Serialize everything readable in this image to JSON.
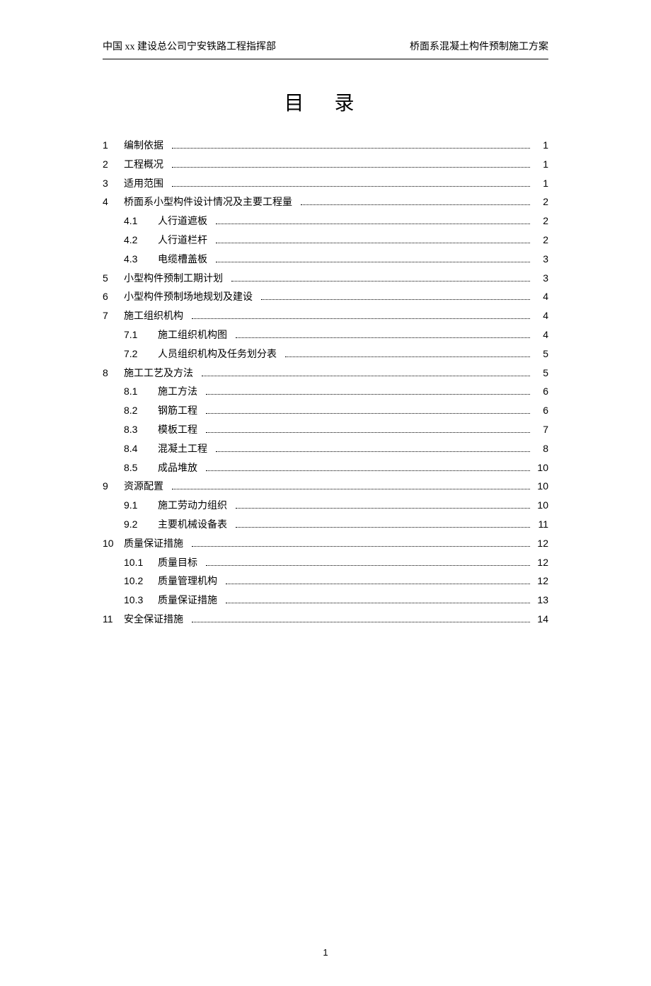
{
  "header": {
    "left": "中国 xx 建设总公司宁安铁路工程指挥部",
    "right": "桥面系混凝土构件预制施工方案"
  },
  "toc_title": "目 录",
  "page_number": "1",
  "entries": [
    {
      "level": 1,
      "num": "1",
      "label": "编制依据",
      "page": "1"
    },
    {
      "level": 1,
      "num": "2",
      "label": "工程概况",
      "page": "1"
    },
    {
      "level": 1,
      "num": "3",
      "label": "适用范围",
      "page": "1"
    },
    {
      "level": 1,
      "num": "4",
      "label": "桥面系小型构件设计情况及主要工程量",
      "page": "2"
    },
    {
      "level": 2,
      "num": "4.1",
      "label": "人行道遮板",
      "page": "2"
    },
    {
      "level": 2,
      "num": "4.2",
      "label": "人行道栏杆",
      "page": "2"
    },
    {
      "level": 2,
      "num": "4.3",
      "label": "电缆槽盖板",
      "page": "3"
    },
    {
      "level": 1,
      "num": "5",
      "label": "小型构件预制工期计划",
      "page": "3"
    },
    {
      "level": 1,
      "num": "6",
      "label": "小型构件预制场地规划及建设",
      "page": "4"
    },
    {
      "level": 1,
      "num": "7",
      "label": "施工组织机构",
      "page": "4"
    },
    {
      "level": 2,
      "num": "7.1",
      "label": "施工组织机构图",
      "page": "4"
    },
    {
      "level": 2,
      "num": "7.2",
      "label": "人员组织机构及任务划分表",
      "page": "5"
    },
    {
      "level": 1,
      "num": "8",
      "label": "施工工艺及方法",
      "page": "5"
    },
    {
      "level": 2,
      "num": "8.1",
      "label": "施工方法",
      "page": "6"
    },
    {
      "level": 2,
      "num": "8.2",
      "label": "钢筋工程",
      "page": "6"
    },
    {
      "level": 2,
      "num": "8.3",
      "label": "模板工程",
      "page": "7"
    },
    {
      "level": 2,
      "num": "8.4",
      "label": "混凝土工程",
      "page": "8"
    },
    {
      "level": 2,
      "num": "8.5",
      "label": "成品堆放",
      "page": "10"
    },
    {
      "level": 1,
      "num": "9",
      "label": "资源配置",
      "page": "10"
    },
    {
      "level": 2,
      "num": "9.1",
      "label": "施工劳动力组织",
      "page": "10"
    },
    {
      "level": 2,
      "num": "9.2",
      "label": "主要机械设备表",
      "page": "11"
    },
    {
      "level": 1,
      "num": "10",
      "label": "质量保证措施",
      "page": "12"
    },
    {
      "level": 2,
      "num": "10.1",
      "label": "质量目标",
      "page": "12"
    },
    {
      "level": 2,
      "num": "10.2",
      "label": "质量管理机构",
      "page": "12"
    },
    {
      "level": 2,
      "num": "10.3",
      "label": "质量保证措施",
      "page": "13"
    },
    {
      "level": 1,
      "num": "11",
      "label": "安全保证措施",
      "page": "14"
    }
  ]
}
